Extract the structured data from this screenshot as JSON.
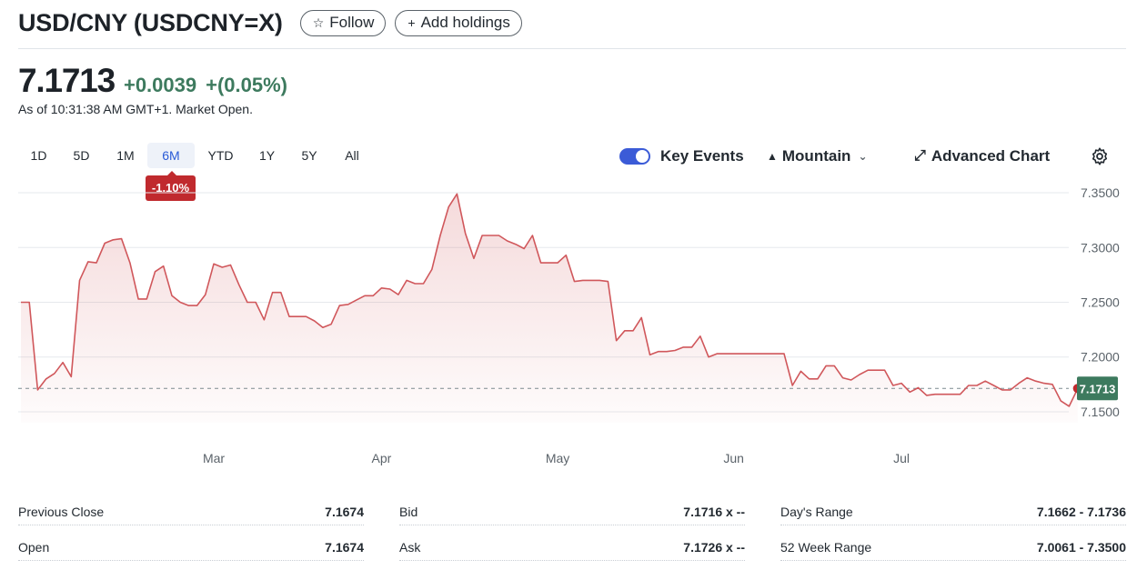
{
  "header": {
    "title": "USD/CNY (USDCNY=X)",
    "follow_label": "Follow",
    "add_holdings_label": "Add holdings"
  },
  "quote": {
    "price": "7.1713",
    "change": "+0.0039",
    "change_pct": "+(0.05%)",
    "as_of": "As of 10:31:38 AM GMT+1. Market Open."
  },
  "ranges": {
    "items": [
      "1D",
      "5D",
      "1M",
      "6M",
      "YTD",
      "1Y",
      "5Y",
      "All"
    ],
    "active": "6M",
    "period_change": "-1.10%"
  },
  "controls": {
    "key_events_label": "Key Events",
    "key_events_on": true,
    "chart_type_label": "Mountain",
    "advanced_chart_label": "Advanced Chart"
  },
  "colors": {
    "line": "#d0575b",
    "positive": "#3d7a5e",
    "negative_badge": "#c02a2e",
    "price_tag": "#3d7a5e",
    "accent": "#3b5bd7"
  },
  "icons": {
    "follow": "star-icon",
    "add": "plus-icon",
    "chart_type": "mountain-icon",
    "advanced": "expand-arrow-icon",
    "settings": "gear-icon"
  },
  "chart_data": {
    "type": "area",
    "ylim": [
      7.14,
      7.36
    ],
    "ytick_labels": [
      "7.3500",
      "7.3000",
      "7.2500",
      "7.2000",
      "7.1500"
    ],
    "ytick_values": [
      7.35,
      7.3,
      7.25,
      7.2,
      7.15
    ],
    "month_labels": [
      "Mar",
      "Apr",
      "May",
      "Jun",
      "Jul"
    ],
    "month_positions": [
      23,
      43,
      64,
      85,
      105
    ],
    "x_max": 123,
    "last_price": 7.1713,
    "last_price_label": "7.1713",
    "reference_value": 7.1713,
    "y": [
      7.25,
      7.25,
      7.17,
      7.18,
      7.185,
      7.195,
      7.182,
      7.27,
      7.287,
      7.286,
      7.304,
      7.307,
      7.308,
      7.286,
      7.253,
      7.253,
      7.278,
      7.283,
      7.256,
      7.25,
      7.247,
      7.247,
      7.257,
      7.285,
      7.282,
      7.284,
      7.266,
      7.25,
      7.25,
      7.234,
      7.259,
      7.259,
      7.237,
      7.237,
      7.237,
      7.233,
      7.227,
      7.23,
      7.247,
      7.248,
      7.252,
      7.256,
      7.256,
      7.263,
      7.262,
      7.257,
      7.27,
      7.267,
      7.267,
      7.28,
      7.311,
      7.337,
      7.349,
      7.313,
      7.29,
      7.311,
      7.311,
      7.311,
      7.306,
      7.303,
      7.299,
      7.311,
      7.286,
      7.286,
      7.286,
      7.293,
      7.269,
      7.27,
      7.27,
      7.27,
      7.269,
      7.215,
      7.224,
      7.224,
      7.236,
      7.202,
      7.205,
      7.205,
      7.206,
      7.209,
      7.209,
      7.219,
      7.2,
      7.203,
      7.203,
      7.203,
      7.203,
      7.203,
      7.203,
      7.203,
      7.203,
      7.203,
      7.174,
      7.187,
      7.18,
      7.18,
      7.192,
      7.192,
      7.181,
      7.179,
      7.184,
      7.188,
      7.188,
      7.188,
      7.174,
      7.176,
      7.168,
      7.172,
      7.165,
      7.166,
      7.166,
      7.166,
      7.166,
      7.174,
      7.174,
      7.178,
      7.174,
      7.17,
      7.17,
      7.176,
      7.181,
      7.178,
      7.176,
      7.175,
      7.16,
      7.155,
      7.171
    ]
  },
  "stats": {
    "col1": [
      {
        "label": "Previous Close",
        "value": "7.1674"
      },
      {
        "label": "Open",
        "value": "7.1674"
      }
    ],
    "col2": [
      {
        "label": "Bid",
        "value": "7.1716 x --"
      },
      {
        "label": "Ask",
        "value": "7.1726 x --"
      }
    ],
    "col3": [
      {
        "label": "Day's Range",
        "value": "7.1662 - 7.1736"
      },
      {
        "label": "52 Week Range",
        "value": "7.0061 - 7.3500"
      }
    ]
  }
}
